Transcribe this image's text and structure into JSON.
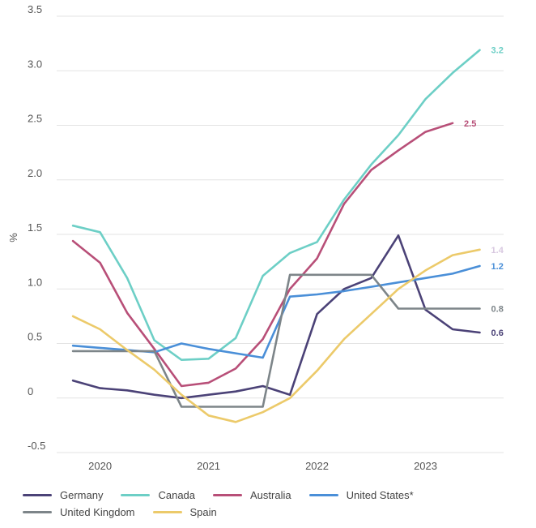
{
  "chart_data": {
    "type": "line",
    "ylabel": "%",
    "ylim": [
      -0.5,
      3.5
    ],
    "yticks": [
      -0.5,
      0,
      0.5,
      1.0,
      1.5,
      2.0,
      2.5,
      3.0,
      3.5
    ],
    "ytick_labels": [
      "-0.5",
      "0",
      "0.5",
      "1.0",
      "1.5",
      "2.0",
      "2.5",
      "3.0",
      "3.5"
    ],
    "xlim": [
      2019.6,
      2023.72
    ],
    "xticks": [
      2020,
      2021,
      2022,
      2023
    ],
    "xtick_labels": [
      "2020",
      "2021",
      "2022",
      "2023"
    ],
    "grid": "horizontal",
    "legend_position": "bottom",
    "series": [
      {
        "name": "Germany",
        "color": "#4b4277",
        "x": [
          2019.75,
          2020.0,
          2020.25,
          2020.5,
          2020.75,
          2021.0,
          2021.25,
          2021.5,
          2021.75,
          2022.0,
          2022.25,
          2022.5,
          2022.75,
          2023.0,
          2023.25,
          2023.5
        ],
        "y": [
          0.16,
          0.09,
          0.07,
          0.03,
          0.0,
          0.03,
          0.06,
          0.11,
          0.03,
          0.77,
          1.0,
          1.1,
          1.49,
          0.81,
          0.63,
          0.6
        ],
        "end_label": "0.6",
        "end_label_color": "#4b4277"
      },
      {
        "name": "Canada",
        "color": "#6dcfc6",
        "x": [
          2019.75,
          2020.0,
          2020.25,
          2020.5,
          2020.75,
          2021.0,
          2021.25,
          2021.5,
          2021.75,
          2022.0,
          2022.25,
          2022.5,
          2022.75,
          2023.0,
          2023.25,
          2023.5
        ],
        "y": [
          1.58,
          1.52,
          1.1,
          0.53,
          0.35,
          0.36,
          0.55,
          1.12,
          1.33,
          1.43,
          1.82,
          2.14,
          2.41,
          2.74,
          2.98,
          3.19
        ],
        "end_label": "3.2",
        "end_label_color": "#6dcfc6"
      },
      {
        "name": "Australia",
        "color": "#b84f78",
        "x": [
          2019.75,
          2020.0,
          2020.25,
          2020.5,
          2020.75,
          2021.0,
          2021.25,
          2021.5,
          2021.75,
          2022.0,
          2022.25,
          2022.5,
          2022.75,
          2023.0,
          2023.25
        ],
        "y": [
          1.44,
          1.24,
          0.78,
          0.45,
          0.11,
          0.14,
          0.27,
          0.54,
          1.0,
          1.28,
          1.78,
          2.09,
          2.27,
          2.44,
          2.52
        ],
        "end_label": "2.5",
        "end_label_color": "#b84f78"
      },
      {
        "name": "United States*",
        "color": "#4a8fd8",
        "x": [
          2019.75,
          2020.0,
          2020.25,
          2020.5,
          2020.75,
          2021.0,
          2021.25,
          2021.5,
          2021.75,
          2022.0,
          2022.25,
          2022.5,
          2022.75,
          2023.0,
          2023.25,
          2023.5
        ],
        "y": [
          0.48,
          0.46,
          0.44,
          0.42,
          0.5,
          0.45,
          0.41,
          0.37,
          0.93,
          0.95,
          0.98,
          1.02,
          1.06,
          1.1,
          1.14,
          1.21
        ],
        "end_label": "1.2",
        "end_label_color": "#4a8fd8"
      },
      {
        "name": "United Kingdom",
        "color": "#7d8589",
        "x": [
          2019.75,
          2020.5,
          2020.75,
          2021.0,
          2021.25,
          2021.5,
          2021.75,
          2022.0,
          2022.25,
          2022.5,
          2022.75,
          2023.0,
          2023.25,
          2023.5
        ],
        "y": [
          0.43,
          0.43,
          -0.08,
          -0.08,
          -0.08,
          -0.08,
          1.13,
          1.13,
          1.13,
          1.13,
          0.82,
          0.82,
          0.82,
          0.82
        ],
        "end_label": "0.8",
        "end_label_color": "#7d8589"
      },
      {
        "name": "Spain",
        "color": "#ecca6a",
        "x": [
          2019.75,
          2020.0,
          2020.25,
          2020.5,
          2020.75,
          2021.0,
          2021.25,
          2021.5,
          2021.75,
          2022.0,
          2022.25,
          2022.5,
          2022.75,
          2023.0,
          2023.25,
          2023.5
        ],
        "y": [
          0.75,
          0.63,
          0.44,
          0.26,
          0.03,
          -0.16,
          -0.22,
          -0.13,
          0.0,
          0.25,
          0.54,
          0.77,
          1.0,
          1.17,
          1.31,
          1.36
        ],
        "end_label": "1.4",
        "end_label_color": "#d8c8e0"
      }
    ]
  },
  "legend": {
    "rows": [
      [
        "Germany",
        "Canada",
        "Australia",
        "United States*"
      ],
      [
        "United Kingdom",
        "Spain"
      ]
    ]
  }
}
